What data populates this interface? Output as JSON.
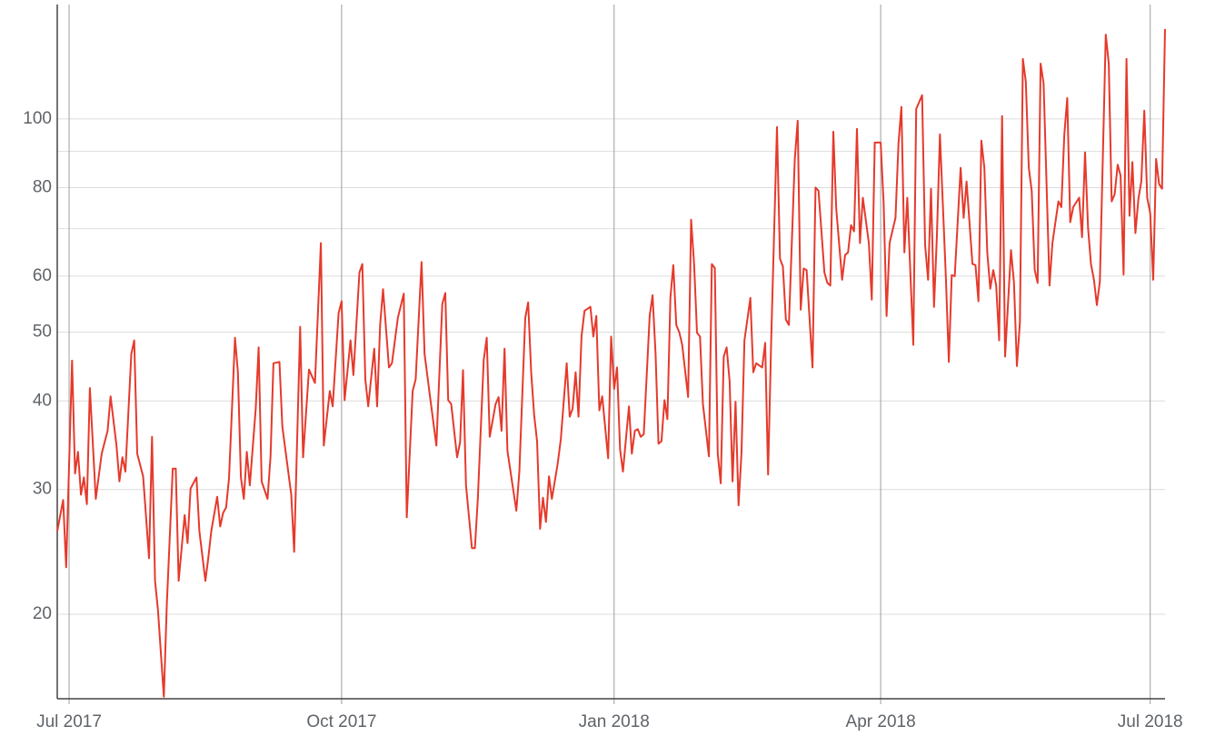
{
  "chart_data": {
    "type": "line",
    "color": "#e53a2c",
    "log_y": true,
    "grid": true,
    "xlim": [
      -4,
      370
    ],
    "ylim": [
      15.2,
      145
    ],
    "xticks": [
      {
        "value": 0,
        "label": "Jul 2017"
      },
      {
        "value": 92,
        "label": "Oct 2017"
      },
      {
        "value": 184,
        "label": "Jan 2018"
      },
      {
        "value": 274,
        "label": "Apr 2018"
      },
      {
        "value": 365,
        "label": "Jul 2018"
      }
    ],
    "yticks": [
      20,
      30,
      40,
      50,
      60,
      80,
      100
    ],
    "y_minor_ticks": [
      70,
      90
    ],
    "x": [
      -4,
      -2,
      -1,
      1,
      2,
      3,
      4,
      5,
      6,
      7,
      9,
      11,
      13,
      14,
      16,
      17,
      18,
      19,
      21,
      22,
      23,
      25,
      27,
      28,
      29,
      30,
      32,
      33,
      35,
      36,
      37,
      39,
      40,
      41,
      43,
      44,
      46,
      47,
      48,
      50,
      51,
      52,
      53,
      54,
      56,
      57,
      58,
      59,
      60,
      61,
      63,
      64,
      65,
      67,
      68,
      69,
      71,
      72,
      75,
      76,
      78,
      79,
      81,
      83,
      85,
      86,
      88,
      89,
      91,
      92,
      93,
      95,
      96,
      98,
      99,
      100,
      101,
      103,
      104,
      105,
      106,
      108,
      109,
      111,
      113,
      114,
      116,
      117,
      119,
      120,
      122,
      124,
      126,
      127,
      128,
      129,
      131,
      132,
      133,
      134,
      136,
      137,
      138,
      140,
      141,
      142,
      144,
      145,
      146,
      147,
      148,
      151,
      152,
      154,
      155,
      156,
      157,
      158,
      159,
      160,
      161,
      162,
      163,
      165,
      166,
      168,
      169,
      170,
      171,
      172,
      173,
      174,
      176,
      177,
      178,
      179,
      180,
      182,
      183,
      184,
      185,
      186,
      187,
      189,
      190,
      191,
      192,
      193,
      194,
      196,
      197,
      198,
      199,
      200,
      201,
      202,
      203,
      204,
      205,
      206,
      207,
      209,
      210,
      211,
      212,
      213,
      214,
      216,
      217,
      218,
      219,
      220,
      221,
      222,
      223,
      224,
      225,
      226,
      227,
      228,
      230,
      231,
      232,
      234,
      235,
      236,
      237,
      239,
      240,
      241,
      242,
      243,
      245,
      246,
      247,
      248,
      249,
      251,
      252,
      253,
      255,
      256,
      257,
      258,
      259,
      261,
      262,
      263,
      264,
      265,
      266,
      267,
      268,
      270,
      271,
      272,
      274,
      275,
      276,
      277,
      279,
      280,
      281,
      282,
      283,
      285,
      286,
      288,
      289,
      290,
      291,
      292,
      293,
      294,
      296,
      297,
      298,
      299,
      301,
      302,
      303,
      305,
      306,
      307,
      308,
      309,
      310,
      311,
      312,
      313,
      314,
      315,
      316,
      318,
      319,
      320,
      321,
      322,
      323,
      324,
      325,
      326,
      327,
      328,
      329,
      331,
      332,
      334,
      335,
      336,
      337,
      338,
      339,
      341,
      342,
      343,
      344,
      345,
      346,
      347,
      348,
      350,
      351,
      352,
      353,
      354,
      355,
      356,
      357,
      358,
      359,
      360,
      361,
      362,
      363,
      364,
      365,
      366,
      367,
      368,
      369,
      370
    ],
    "values": [
      26.2,
      29.0,
      23.3,
      45.6,
      31.6,
      33.9,
      29.5,
      31.2,
      28.6,
      41.7,
      29.1,
      33.7,
      36.3,
      40.6,
      34.6,
      30.8,
      33.3,
      31.8,
      46.6,
      48.7,
      33.7,
      31.3,
      24.0,
      35.6,
      22.3,
      20.3,
      15.3,
      20.7,
      32.1,
      32.1,
      22.3,
      27.6,
      25.2,
      30.1,
      31.2,
      26.2,
      22.3,
      24.0,
      26.2,
      29.3,
      26.6,
      27.8,
      28.3,
      31.1,
      49.1,
      43.9,
      31.2,
      29.1,
      33.9,
      30.4,
      39.0,
      47.6,
      30.8,
      29.1,
      33.4,
      45.2,
      45.4,
      36.8,
      29.5,
      24.5,
      50.9,
      33.3,
      44.3,
      42.4,
      66.8,
      34.6,
      41.3,
      39.3,
      53.2,
      55.3,
      40.1,
      48.7,
      43.5,
      60.7,
      62.4,
      42.9,
      39.3,
      47.4,
      39.3,
      51.2,
      57.5,
      44.6,
      45.2,
      52.4,
      56.7,
      27.4,
      41.3,
      42.9,
      62.8,
      46.6,
      40.1,
      34.6,
      54.8,
      56.8,
      40.1,
      39.6,
      33.3,
      35.0,
      44.2,
      30.4,
      24.8,
      24.8,
      29.1,
      45.7,
      49.1,
      35.6,
      39.6,
      40.5,
      36.3,
      47.4,
      34.0,
      28.0,
      31.8,
      52.4,
      55.1,
      43.9,
      38.2,
      35.1,
      26.4,
      29.2,
      27.0,
      31.3,
      29.1,
      32.7,
      35.3,
      45.2,
      38.0,
      39.0,
      43.9,
      38.0,
      49.3,
      53.6,
      54.3,
      49.3,
      52.7,
      38.8,
      40.6,
      33.2,
      49.3,
      41.6,
      44.6,
      34.2,
      31.8,
      39.3,
      33.7,
      36.3,
      36.5,
      35.6,
      35.9,
      52.7,
      56.4,
      46.6,
      34.8,
      35.1,
      40.1,
      37.7,
      55.9,
      62.2,
      51.2,
      50.0,
      48.0,
      40.5,
      72.1,
      62.4,
      49.9,
      49.3,
      39.6,
      33.4,
      62.4,
      61.6,
      33.7,
      30.6,
      46.2,
      47.6,
      42.6,
      30.8,
      39.9,
      28.5,
      33.7,
      48.7,
      55.9,
      43.9,
      45.2,
      44.6,
      48.3,
      31.5,
      48.0,
      97.4,
      63.5,
      61.9,
      52.1,
      51.2,
      87.8,
      99.4,
      53.8,
      61.5,
      61.2,
      44.6,
      80.0,
      79.2,
      60.7,
      58.7,
      58.2,
      95.9,
      74.7,
      59.3,
      64.3,
      64.8,
      70.8,
      69.4,
      96.8,
      66.8,
      77.4,
      66.8,
      55.6,
      92.6,
      92.6,
      75.8,
      52.7,
      66.8,
      72.5,
      92.3,
      104.0,
      64.8,
      77.4,
      48.0,
      103.3,
      108.0,
      66.4,
      59.3,
      79.7,
      54.3,
      68.5,
      95.1,
      60.0,
      45.4,
      60.2,
      60.0,
      85.3,
      72.5,
      81.6,
      62.4,
      62.2,
      55.3,
      93.2,
      85.3,
      64.8,
      57.6,
      61.2,
      58.2,
      48.7,
      100.9,
      46.2,
      65.3,
      58.7,
      44.8,
      51.6,
      121.5,
      112.9,
      85.3,
      79.2,
      61.2,
      58.7,
      119.7,
      112.2,
      58.2,
      66.8,
      76.5,
      75.1,
      95.1,
      107.0,
      71.5,
      75.1,
      77.4,
      68.1,
      89.7,
      70.2,
      62.4,
      59.3,
      54.6,
      59.0,
      131.5,
      119.7,
      76.5,
      78.3,
      86.2,
      83.2,
      60.3,
      121.5,
      73.0,
      86.9,
      69.0,
      77.1,
      81.6,
      102.7,
      77.4,
      73.6,
      59.3,
      87.8,
      80.9,
      79.7,
      133.9
    ]
  }
}
